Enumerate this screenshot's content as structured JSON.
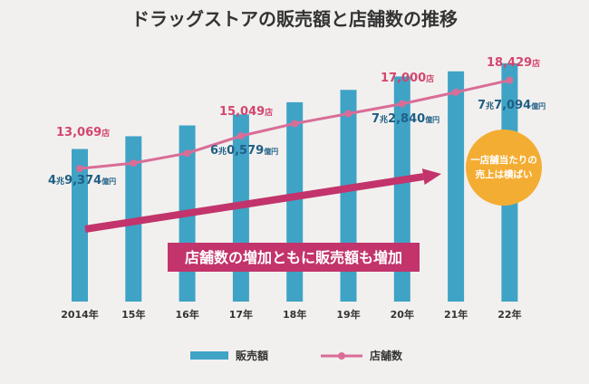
{
  "chart_data": {
    "type": "bar+line",
    "title": "ドラッグストアの販売額と店舗数の推移",
    "categories": [
      "2014年",
      "15年",
      "16年",
      "17年",
      "18年",
      "19年",
      "20年",
      "21年",
      "22年"
    ],
    "series": [
      {
        "name": "販売額",
        "type": "bar",
        "color": "#3fa3c6",
        "values": [
          49374,
          53500,
          57000,
          60579,
          64500,
          68500,
          72840,
          74500,
          77094
        ],
        "labels": [
          {
            "index": 0,
            "big": "4",
            "unit": "兆",
            "rest": "9,374",
            "small": "億円"
          },
          {
            "index": 3,
            "big": "6",
            "unit": "兆",
            "rest": "0,579",
            "small": "億円"
          },
          {
            "index": 6,
            "big": "7",
            "unit": "兆",
            "rest": "2,840",
            "small": "億円"
          },
          {
            "index": 8,
            "big": "7",
            "unit": "兆",
            "rest": "7,094",
            "small": "億円"
          }
        ]
      },
      {
        "name": "店舗数",
        "type": "line",
        "color": "#d96d97",
        "values": [
          13069,
          13400,
          14000,
          15049,
          15800,
          16400,
          17000,
          17700,
          18429
        ],
        "labels": [
          {
            "index": 0,
            "num": "13,069",
            "suffix": "店"
          },
          {
            "index": 3,
            "num": "15,049",
            "suffix": "店"
          },
          {
            "index": 6,
            "num": "17,000",
            "suffix": "店"
          },
          {
            "index": 8,
            "num": "18,429",
            "suffix": "店"
          }
        ]
      }
    ],
    "bar_axis_range": [
      0,
      80000
    ],
    "line_axis_range": [
      5000,
      20000
    ],
    "grid": false,
    "legend": "bottom-center",
    "annotations": {
      "banner": "店舗数の増加ともに販売額も増加",
      "bubble": [
        "一店舗当たりの",
        "売上は横ばい"
      ]
    }
  },
  "colors": {
    "background": "#f2f0ee",
    "bar": "#3fa3c6",
    "line": "#d96d97",
    "label_blue": "#1f5f85",
    "label_pink": "#d2466f",
    "banner": "#c2346b",
    "bubble": "#f4ad33",
    "text": "#333333"
  }
}
